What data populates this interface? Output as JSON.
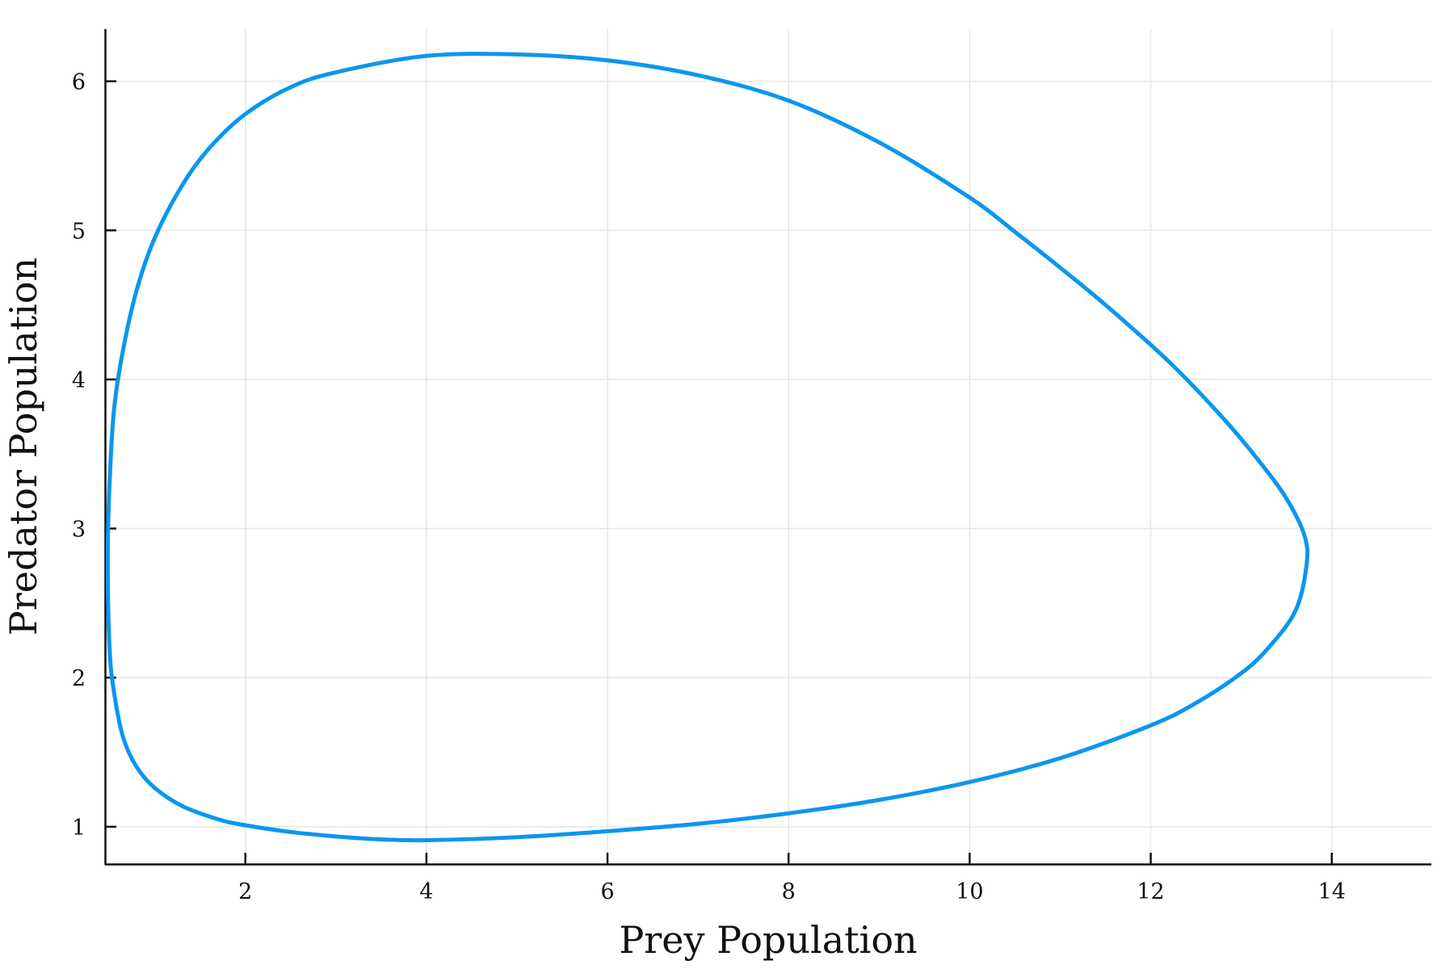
{
  "chart_data": {
    "type": "line",
    "title": "",
    "xlabel": "Prey Population",
    "ylabel": "Predator Population",
    "xlim": [
      0.45,
      15.1
    ],
    "ylim": [
      0.75,
      6.35
    ],
    "xticks": [
      2,
      4,
      6,
      8,
      10,
      12,
      14
    ],
    "yticks": [
      1,
      2,
      3,
      4,
      5,
      6
    ],
    "grid": true,
    "legend": "none",
    "series": [
      {
        "color": "#0a96f0",
        "x": [
          4.0,
          5.0,
          6.0,
          7.0,
          8.0,
          9.0,
          10.0,
          11.0,
          12.0,
          12.5,
          13.0,
          13.3,
          13.6,
          13.72,
          13.7,
          13.5,
          13.2,
          12.8,
          12.2,
          11.5,
          11.0,
          10.5,
          10.0,
          9.0,
          8.0,
          7.0,
          6.0,
          5.0,
          4.0,
          3.0,
          2.5,
          2.0,
          1.6,
          1.3,
          1.0,
          0.8,
          0.65,
          0.55,
          0.5,
          0.48,
          0.5,
          0.55,
          0.65,
          0.8,
          1.0,
          1.3,
          1.7,
          2.0,
          2.5,
          3.0,
          3.5,
          4.0
        ],
        "y": [
          0.91,
          0.93,
          0.97,
          1.02,
          1.09,
          1.18,
          1.3,
          1.46,
          1.68,
          1.83,
          2.03,
          2.2,
          2.45,
          2.75,
          2.95,
          3.2,
          3.45,
          3.74,
          4.12,
          4.5,
          4.75,
          4.99,
          5.22,
          5.59,
          5.87,
          6.04,
          6.14,
          6.18,
          6.17,
          6.06,
          5.96,
          5.78,
          5.55,
          5.3,
          4.95,
          4.6,
          4.2,
          3.8,
          3.3,
          2.8,
          2.2,
          1.9,
          1.6,
          1.4,
          1.26,
          1.14,
          1.05,
          1.01,
          0.965,
          0.935,
          0.915,
          0.91
        ]
      }
    ]
  }
}
